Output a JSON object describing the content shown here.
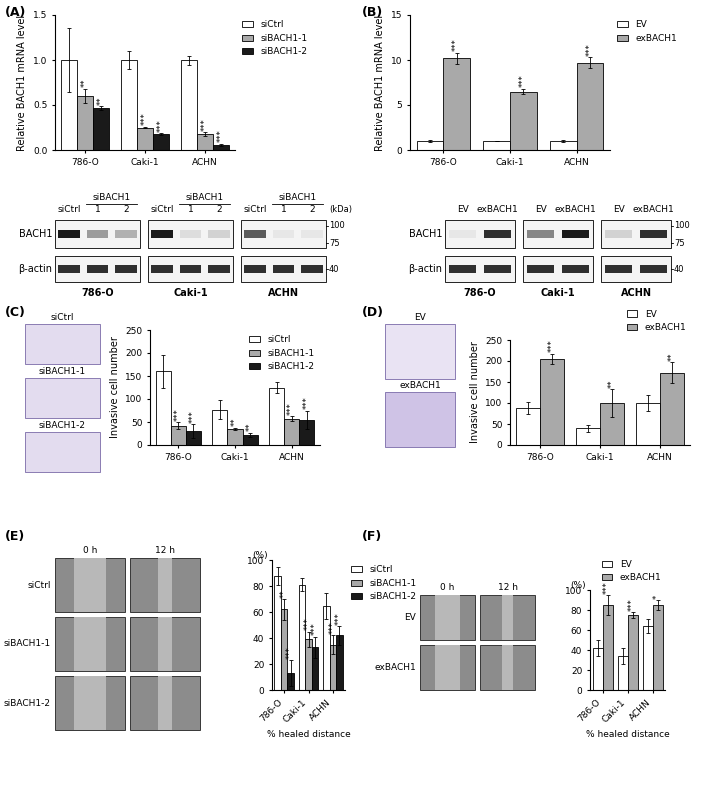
{
  "panel_labels": [
    "(A)",
    "(B)",
    "(C)",
    "(D)",
    "(E)",
    "(F)"
  ],
  "chart_data": [
    {
      "type": "bar",
      "ylabel": "Relative BACH1 mRNA level",
      "categories": [
        "786-O",
        "Caki-1",
        "ACHN"
      ],
      "series": [
        {
          "name": "siCtrl",
          "color": "#ffffff",
          "values": [
            1.0,
            1.0,
            1.0
          ],
          "errors": [
            0.35,
            0.1,
            0.05
          ],
          "significance": [
            null,
            null,
            null
          ]
        },
        {
          "name": "siBACH1-1",
          "color": "#a9a9a9",
          "values": [
            0.6,
            0.25,
            0.18
          ],
          "errors": [
            0.08,
            0.01,
            0.02
          ],
          "significance": [
            "**",
            "***",
            "***"
          ]
        },
        {
          "name": "siBACH1-2",
          "color": "#1a1a1a",
          "values": [
            0.47,
            0.18,
            0.06
          ],
          "errors": [
            0.02,
            0.01,
            0.01
          ],
          "significance": [
            "**",
            "***",
            "***"
          ]
        }
      ],
      "ylim": [
        0,
        1.5
      ],
      "yticks": [
        {
          "value": 0,
          "label": "0.0"
        },
        {
          "value": 0.5,
          "label": "0.5"
        },
        {
          "value": 1.0,
          "label": "1.0"
        },
        {
          "value": 1.5,
          "label": "1.5"
        }
      ],
      "legend": "upper left"
    },
    {
      "type": "bar",
      "ylabel": "Relative BACH1 mRNA level",
      "categories": [
        "786-O",
        "Caki-1",
        "ACHN"
      ],
      "series": [
        {
          "name": "EV",
          "color": "#ffffff",
          "values": [
            1.0,
            1.0,
            1.0
          ],
          "errors": [
            0.1,
            0.05,
            0.08
          ],
          "significance": [
            null,
            null,
            null
          ]
        },
        {
          "name": "exBACH1",
          "color": "#a9a9a9",
          "values": [
            10.2,
            6.5,
            9.7
          ],
          "errors": [
            0.6,
            0.3,
            0.6
          ],
          "significance": [
            "***",
            "***",
            "***"
          ]
        }
      ],
      "ylim": [
        0,
        15
      ],
      "yticks": [
        0,
        5,
        10,
        15
      ],
      "legend": "upper left"
    },
    {
      "type": "bar",
      "ylabel": "Invasive cell number",
      "categories": [
        "786-O",
        "Caki-1",
        "ACHN"
      ],
      "series": [
        {
          "name": "siCtrl",
          "color": "#ffffff",
          "values": [
            160,
            77,
            125
          ],
          "errors": [
            35,
            20,
            13
          ],
          "significance": [
            null,
            null,
            null
          ]
        },
        {
          "name": "siBACH1-1",
          "color": "#a9a9a9",
          "values": [
            42,
            35,
            57
          ],
          "errors": [
            8,
            3,
            5
          ],
          "significance": [
            "***",
            "**",
            "***"
          ]
        },
        {
          "name": "siBACH1-2",
          "color": "#1a1a1a",
          "values": [
            30,
            22,
            55
          ],
          "errors": [
            15,
            5,
            20
          ],
          "significance": [
            "***",
            "**",
            "***"
          ]
        }
      ],
      "ylim": [
        0,
        250
      ],
      "yticks": [
        0,
        50,
        100,
        150,
        200,
        250
      ],
      "legend": "upper right"
    },
    {
      "type": "bar",
      "ylabel": "Invasive cell number",
      "categories": [
        "786-O",
        "Caki-1",
        "ACHN"
      ],
      "series": [
        {
          "name": "EV",
          "color": "#ffffff",
          "values": [
            88,
            40,
            100
          ],
          "errors": [
            15,
            8,
            18
          ],
          "significance": [
            null,
            null,
            null
          ]
        },
        {
          "name": "exBACH1",
          "color": "#a9a9a9",
          "values": [
            205,
            100,
            172
          ],
          "errors": [
            12,
            33,
            25
          ],
          "significance": [
            "***",
            "**",
            "**"
          ]
        }
      ],
      "ylim": [
        0,
        250
      ],
      "yticks": [
        0,
        50,
        100,
        150,
        200,
        250
      ],
      "legend": "lower right"
    },
    {
      "type": "bar",
      "ylabel": "(%)",
      "xlabel": "% healed distance",
      "categories": [
        "786-O",
        "Caki-1",
        "ACHN"
      ],
      "series": [
        {
          "name": "siCtrl",
          "color": "#ffffff",
          "values": [
            88,
            81,
            65
          ],
          "errors": [
            7,
            5,
            10
          ],
          "significance": [
            null,
            null,
            null
          ]
        },
        {
          "name": "siBACH1-1",
          "color": "#a9a9a9",
          "values": [
            62,
            39,
            35
          ],
          "errors": [
            8,
            6,
            7
          ],
          "significance": [
            "**",
            "***",
            "***"
          ]
        },
        {
          "name": "siBACH1-2",
          "color": "#1a1a1a",
          "values": [
            13,
            33,
            42
          ],
          "errors": [
            10,
            8,
            7
          ],
          "significance": [
            "***",
            "***",
            "***"
          ]
        }
      ],
      "ylim": [
        0,
        100
      ],
      "yticks": [
        0,
        20,
        40,
        60,
        80,
        100
      ],
      "legend": "upper left"
    },
    {
      "type": "bar",
      "ylabel": "(%)",
      "xlabel": "% healed distance",
      "categories": [
        "786-O",
        "Caki-1",
        "ACHN"
      ],
      "series": [
        {
          "name": "EV",
          "color": "#ffffff",
          "values": [
            42,
            34,
            64
          ],
          "errors": [
            8,
            8,
            7
          ],
          "significance": [
            null,
            null,
            null
          ]
        },
        {
          "name": "exBACH1",
          "color": "#a9a9a9",
          "values": [
            85,
            75,
            85
          ],
          "errors": [
            10,
            3,
            5
          ],
          "significance": [
            "***",
            "***",
            "*"
          ]
        }
      ],
      "ylim": [
        0,
        100
      ],
      "yticks": [
        0,
        20,
        40,
        60,
        80,
        100
      ],
      "legend": "lower right"
    }
  ],
  "blots": [
    {
      "groups": [
        {
          "name": "786-O",
          "lanes": [
            "siCtrl",
            "1",
            "2"
          ],
          "header": "siBACH1"
        },
        {
          "name": "Caki-1",
          "lanes": [
            "siCtrl",
            "1",
            "2"
          ],
          "header": "siBACH1"
        },
        {
          "name": "ACHN",
          "lanes": [
            "siCtrl",
            "1",
            "2"
          ],
          "header": "siBACH1"
        }
      ],
      "rows": [
        {
          "name": "BACH1",
          "bands": [
            [
              1.0,
              0.4,
              0.3
            ],
            [
              1.0,
              0.1,
              0.15
            ],
            [
              0.7,
              0.05,
              0.05
            ]
          ]
        },
        {
          "name": "β-actin",
          "bands": [
            [
              0.9,
              0.9,
              0.9
            ],
            [
              0.9,
              0.9,
              0.9
            ],
            [
              0.9,
              0.9,
              0.9
            ]
          ]
        }
      ],
      "marker_unit": "(kDa)",
      "markers": [
        100,
        75,
        40
      ]
    },
    {
      "groups": [
        {
          "name": "786-O",
          "lanes": [
            "EV",
            "exBACH1"
          ]
        },
        {
          "name": "Caki-1",
          "lanes": [
            "EV",
            "exBACH1"
          ]
        },
        {
          "name": "ACHN",
          "lanes": [
            "EV",
            "exBACH1"
          ]
        }
      ],
      "rows": [
        {
          "name": "BACH1",
          "bands": [
            [
              0.05,
              0.9
            ],
            [
              0.5,
              1.0
            ],
            [
              0.15,
              0.9
            ]
          ]
        },
        {
          "name": "β-actin",
          "bands": [
            [
              0.9,
              0.9
            ],
            [
              0.9,
              0.9
            ],
            [
              0.9,
              0.9
            ]
          ]
        }
      ],
      "markers": [
        100,
        75,
        40
      ]
    }
  ],
  "images": [
    {
      "labels": [
        "siCtrl",
        "siBACH1-1",
        "siBACH1-2"
      ]
    },
    {
      "labels": [
        "EV",
        "exBACH1"
      ]
    },
    {
      "columns": [
        "0 h",
        "12 h"
      ],
      "rows": [
        "siCtrl",
        "siBACH1-1",
        "siBACH1-2"
      ]
    },
    {
      "columns": [
        "0 h",
        "12 h"
      ],
      "rows": [
        "EV",
        "exBACH1"
      ]
    }
  ]
}
